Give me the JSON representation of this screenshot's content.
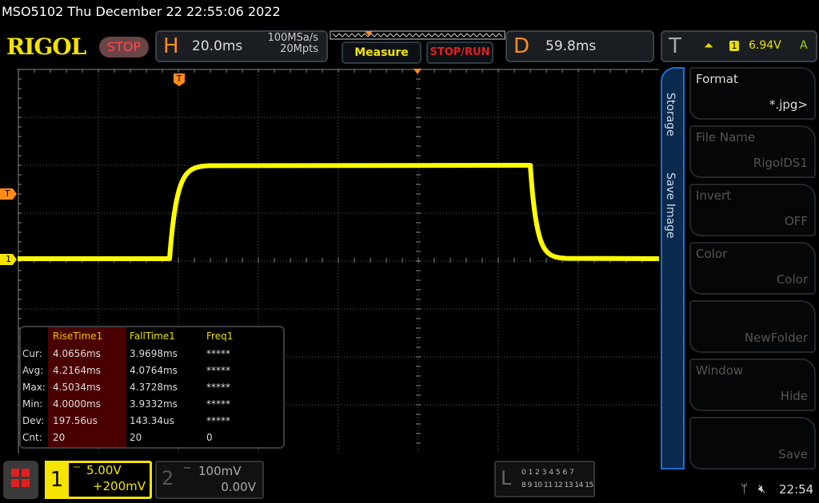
{
  "header": {
    "title": "MSO5102  Thu December 22 22:55:06 2022",
    "logo": "RIGOL",
    "run_state": "STOP",
    "horizontal": {
      "letter": "H",
      "timebase": "20.0ms",
      "sample_rate": "100MSa/s",
      "memory_depth": "20Mpts"
    },
    "measure_label": "Measure",
    "stoprun_label": "STOP/RUN",
    "delay": {
      "letter": "D",
      "value": "59.8ms"
    },
    "trigger": {
      "letter": "T",
      "source": "1",
      "level": "6.94V",
      "mode": "A"
    }
  },
  "markers": {
    "trigger_pos": "T",
    "trigger_level": "T",
    "ch1": "1"
  },
  "waveform": {
    "color": "#ffff00"
  },
  "measurements": {
    "headers": [
      "",
      "RiseTime1",
      "FallTime1",
      "Freq1"
    ],
    "rows": [
      [
        "Cur:",
        "4.0656ms",
        "3.9698ms",
        "*****"
      ],
      [
        "Avg:",
        "4.2164ms",
        "4.0764ms",
        "*****"
      ],
      [
        "Max:",
        "4.5034ms",
        "4.3728ms",
        "*****"
      ],
      [
        "Min:",
        "4.0000ms",
        "3.9332ms",
        "*****"
      ],
      [
        "Dev:",
        "197.56us",
        "143.34us",
        "*****"
      ],
      [
        "Cnt:",
        "20",
        "20",
        "0"
      ]
    ]
  },
  "menu": {
    "tabs": [
      "Storage",
      "Save Image"
    ],
    "items": [
      {
        "title": "Format",
        "value": "*.jpg>"
      },
      {
        "title": "File Name",
        "value": "RigolDS1"
      },
      {
        "title": "Invert",
        "value": "OFF"
      },
      {
        "title": "Color",
        "value": "Color"
      },
      {
        "title": "",
        "value": "NewFolder"
      },
      {
        "title": "Window",
        "value": "Hide"
      },
      {
        "title": "",
        "value": "Save"
      }
    ]
  },
  "channels": [
    {
      "num": "1",
      "scale": "5.00V",
      "offset": "+200mV",
      "color": "#f5e400"
    },
    {
      "num": "2",
      "scale": "100mV",
      "offset": "0.00V"
    }
  ],
  "logic": {
    "letter": "L",
    "row1": "0 1 2 3  4 5 6 7",
    "row2": "8 9 10 11 12 13 14 15"
  },
  "status": {
    "time": "22:54",
    "usb_icon": "usb-icon",
    "sound_icon": "speaker-muted-icon"
  }
}
